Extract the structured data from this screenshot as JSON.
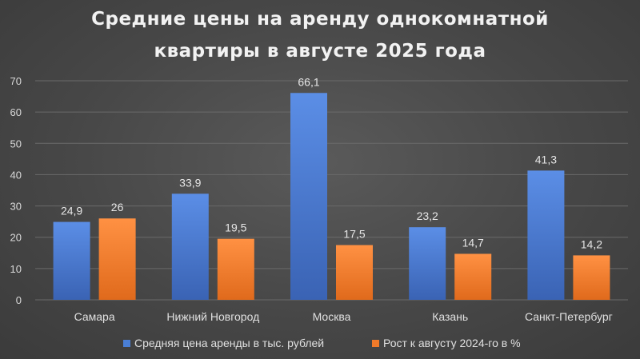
{
  "chart_data": {
    "type": "bar",
    "title_lines": [
      "Средние цены на аренду однокомнатной",
      "квартиры в августе 2025 года"
    ],
    "categories": [
      "Самара",
      "Нижний Новгород",
      "Москва",
      "Казань",
      "Санкт-Петербург"
    ],
    "series": [
      {
        "name": "Средняя цена аренды в тыс. рублей",
        "values": [
          24.9,
          33.9,
          66.1,
          23.2,
          41.3
        ],
        "labels": [
          "24,9",
          "33,9",
          "66,1",
          "23,2",
          "41,3"
        ],
        "color": "#4472c4"
      },
      {
        "name": "Рост к августу 2024-го в %",
        "values": [
          26,
          19.5,
          17.5,
          14.7,
          14.2
        ],
        "labels": [
          "26",
          "19,5",
          "17,5",
          "14,7",
          "14,2"
        ],
        "color": "#ed7d31"
      }
    ],
    "ylim": [
      0,
      70
    ],
    "yticks": [
      0,
      10,
      20,
      30,
      40,
      50,
      60,
      70
    ],
    "grid": true,
    "legend_position": "bottom"
  },
  "colors": {
    "background": "#474747",
    "title": "#f2f2f2",
    "text": "#d9d9d9",
    "grid": "#6a6a6a"
  }
}
